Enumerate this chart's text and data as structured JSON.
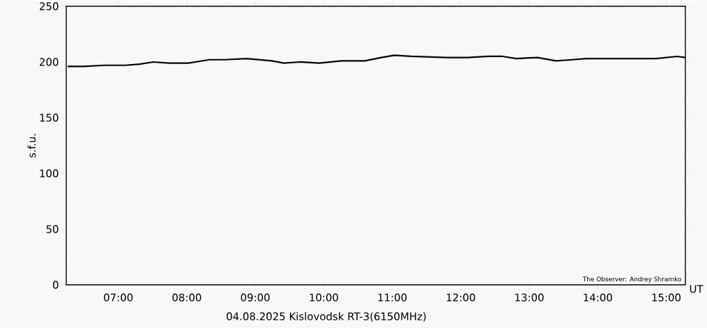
{
  "chart_data": {
    "type": "line",
    "title": "04.08.2025 Kislovodsk RT-3(6150MHz)",
    "xlabel": "UT",
    "ylabel": "s.f.u.",
    "annotations": [
      "The Observer: Andrey Shramko"
    ],
    "x": [
      6.26,
      6.49,
      6.8,
      7.1,
      7.31,
      7.51,
      7.74,
      8.02,
      8.33,
      8.56,
      8.87,
      9.24,
      9.42,
      9.65,
      9.93,
      10.26,
      10.6,
      10.84,
      11.03,
      11.28,
      11.79,
      12.1,
      12.4,
      12.61,
      12.81,
      13.12,
      13.39,
      13.63,
      13.83,
      14.34,
      14.59,
      14.85,
      15.16,
      15.28
    ],
    "series": [
      {
        "color": "#000000",
        "values": [
          196,
          196,
          197,
          197,
          198,
          200,
          199,
          199,
          202,
          202,
          203,
          201,
          199,
          200,
          199,
          201,
          201,
          204,
          206,
          205,
          204,
          204,
          205,
          205,
          203,
          204,
          201,
          202,
          203,
          203,
          203,
          203,
          205,
          204
        ]
      }
    ],
    "xlim": [
      6.24,
      15.28
    ],
    "ylim": [
      0,
      250
    ],
    "xticks": [
      {
        "value": 7,
        "label": "07:00"
      },
      {
        "value": 8,
        "label": "08:00"
      },
      {
        "value": 9,
        "label": "09:00"
      },
      {
        "value": 10,
        "label": "10:00"
      },
      {
        "value": 11,
        "label": "11:00"
      },
      {
        "value": 12,
        "label": "12:00"
      },
      {
        "value": 13,
        "label": "13:00"
      },
      {
        "value": 14,
        "label": "14:00"
      },
      {
        "value": 15,
        "label": "15:00"
      }
    ],
    "yticks": [
      0,
      50,
      100,
      150,
      200,
      250
    ],
    "marker": "none",
    "line_style": "solid"
  }
}
